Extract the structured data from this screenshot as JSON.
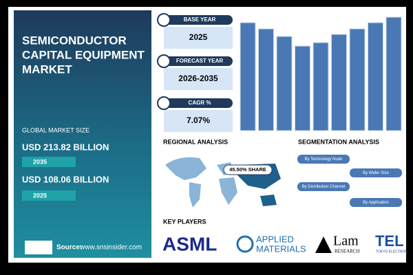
{
  "title_lines": [
    "SEMICONDUCTOR",
    "CAPITAL EQUIPMENT",
    "MARKET"
  ],
  "market_size": {
    "label": "GLOBAL MARKET SIZE",
    "items": [
      {
        "value": "USD 213.82 BILLION",
        "year": "2035"
      },
      {
        "value": "USD 108.06 BILLION",
        "year": "2025"
      }
    ]
  },
  "source": {
    "label": "Source:",
    "url": "www.snsinsider.com"
  },
  "cards": [
    {
      "label": "BASE YEAR",
      "value": "2025"
    },
    {
      "label": "FORECAST YEAR",
      "value": "2026-2035"
    },
    {
      "label": "CAGR %",
      "value": "7.07%"
    }
  ],
  "chart_data": {
    "type": "bar",
    "values": [
      157,
      148,
      137,
      123,
      128,
      140,
      148,
      157,
      165
    ],
    "ylim": [
      0,
      170
    ],
    "color": "#4a78b5"
  },
  "regional": {
    "title": "REGIONAL ANALYSIS",
    "share": "45.50% SHARE"
  },
  "segmentation": {
    "title": "SEGMENTATION ANALYSIS",
    "items": [
      "By Technology Node",
      "By Wafer Size",
      "By Distribution Channel",
      "By Application"
    ]
  },
  "key_players": {
    "title": "KEY PLAYERS",
    "logos": [
      {
        "name": "ASML"
      },
      {
        "name": "APPLIED",
        "sub": "MATERIALS"
      },
      {
        "name": "Lam",
        "sub": "RESEARCH"
      },
      {
        "name": "TEL",
        "sub": "TOKYO ELECTRON"
      }
    ]
  }
}
